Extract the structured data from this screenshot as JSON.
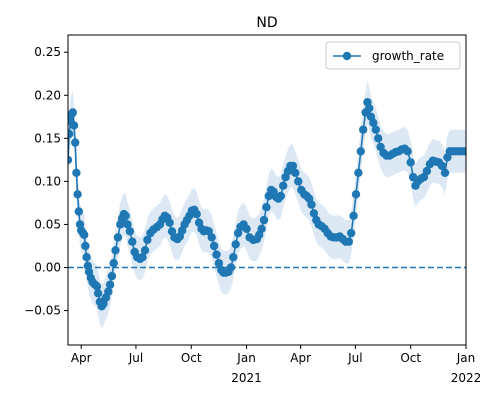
{
  "chart_data": {
    "type": "line",
    "title": "ND",
    "xlabel": "",
    "ylabel": "",
    "xlim": [
      "2020-03-10",
      "2022-01-01"
    ],
    "ylim": [
      -0.09,
      0.27
    ],
    "x_ticks": [
      {
        "date": "2020-04-01",
        "label": "Apr",
        "sub": ""
      },
      {
        "date": "2020-07-01",
        "label": "Jul",
        "sub": ""
      },
      {
        "date": "2020-10-01",
        "label": "Oct",
        "sub": ""
      },
      {
        "date": "2021-01-01",
        "label": "Jan",
        "sub": "2021"
      },
      {
        "date": "2021-04-01",
        "label": "Apr",
        "sub": ""
      },
      {
        "date": "2021-07-01",
        "label": "Jul",
        "sub": ""
      },
      {
        "date": "2021-10-01",
        "label": "Oct",
        "sub": ""
      },
      {
        "date": "2022-01-01",
        "label": "Jan",
        "sub": "2022"
      }
    ],
    "y_ticks": [
      {
        "value": -0.05,
        "label": "−0.05"
      },
      {
        "value": 0.0,
        "label": "0.00"
      },
      {
        "value": 0.05,
        "label": "0.05"
      },
      {
        "value": 0.1,
        "label": "0.10"
      },
      {
        "value": 0.15,
        "label": "0.15"
      },
      {
        "value": 0.2,
        "label": "0.20"
      },
      {
        "value": 0.25,
        "label": "0.25"
      }
    ],
    "reference_line": {
      "y": 0.0,
      "style": "dashed"
    },
    "legend": {
      "placement": "top-right"
    },
    "series": [
      {
        "name": "growth_rate",
        "color": "#1f77b4",
        "band_color": "#dce9f5",
        "band_half_width": 0.025,
        "points": [
          [
            "2020-03-10",
            0.125
          ],
          [
            "2020-03-12",
            0.155
          ],
          [
            "2020-03-14",
            0.17
          ],
          [
            "2020-03-16",
            0.178
          ],
          [
            "2020-03-18",
            0.18
          ],
          [
            "2020-03-20",
            0.165
          ],
          [
            "2020-03-22",
            0.145
          ],
          [
            "2020-03-24",
            0.11
          ],
          [
            "2020-03-26",
            0.085
          ],
          [
            "2020-03-28",
            0.065
          ],
          [
            "2020-03-30",
            0.05
          ],
          [
            "2020-04-01",
            0.043
          ],
          [
            "2020-04-04",
            0.04
          ],
          [
            "2020-04-06",
            0.038
          ],
          [
            "2020-04-08",
            0.025
          ],
          [
            "2020-04-10",
            0.012
          ],
          [
            "2020-04-12",
            0.002
          ],
          [
            "2020-04-14",
            -0.005
          ],
          [
            "2020-04-17",
            -0.012
          ],
          [
            "2020-04-20",
            -0.017
          ],
          [
            "2020-04-24",
            -0.02
          ],
          [
            "2020-04-27",
            -0.022
          ],
          [
            "2020-04-29",
            -0.03
          ],
          [
            "2020-05-02",
            -0.04
          ],
          [
            "2020-05-05",
            -0.045
          ],
          [
            "2020-05-08",
            -0.042
          ],
          [
            "2020-05-12",
            -0.035
          ],
          [
            "2020-05-16",
            -0.028
          ],
          [
            "2020-05-19",
            -0.02
          ],
          [
            "2020-05-22",
            -0.01
          ],
          [
            "2020-05-25",
            0.005
          ],
          [
            "2020-05-28",
            0.02
          ],
          [
            "2020-06-01",
            0.035
          ],
          [
            "2020-06-05",
            0.05
          ],
          [
            "2020-06-08",
            0.057
          ],
          [
            "2020-06-11",
            0.062
          ],
          [
            "2020-06-14",
            0.06
          ],
          [
            "2020-06-17",
            0.05
          ],
          [
            "2020-06-21",
            0.042
          ],
          [
            "2020-06-25",
            0.03
          ],
          [
            "2020-06-29",
            0.018
          ],
          [
            "2020-07-03",
            0.012
          ],
          [
            "2020-07-08",
            0.01
          ],
          [
            "2020-07-12",
            0.012
          ],
          [
            "2020-07-16",
            0.02
          ],
          [
            "2020-07-20",
            0.032
          ],
          [
            "2020-07-25",
            0.04
          ],
          [
            "2020-07-30",
            0.044
          ],
          [
            "2020-08-05",
            0.047
          ],
          [
            "2020-08-10",
            0.05
          ],
          [
            "2020-08-14",
            0.056
          ],
          [
            "2020-08-18",
            0.06
          ],
          [
            "2020-08-22",
            0.058
          ],
          [
            "2020-08-26",
            0.052
          ],
          [
            "2020-08-30",
            0.042
          ],
          [
            "2020-09-03",
            0.035
          ],
          [
            "2020-09-08",
            0.033
          ],
          [
            "2020-09-12",
            0.036
          ],
          [
            "2020-09-16",
            0.043
          ],
          [
            "2020-09-20",
            0.05
          ],
          [
            "2020-09-24",
            0.055
          ],
          [
            "2020-09-28",
            0.06
          ],
          [
            "2020-10-02",
            0.066
          ],
          [
            "2020-10-06",
            0.067
          ],
          [
            "2020-10-10",
            0.062
          ],
          [
            "2020-10-14",
            0.052
          ],
          [
            "2020-10-18",
            0.045
          ],
          [
            "2020-10-22",
            0.042
          ],
          [
            "2020-10-26",
            0.043
          ],
          [
            "2020-10-30",
            0.042
          ],
          [
            "2020-11-04",
            0.035
          ],
          [
            "2020-11-08",
            0.025
          ],
          [
            "2020-11-12",
            0.015
          ],
          [
            "2020-11-16",
            0.005
          ],
          [
            "2020-11-20",
            -0.003
          ],
          [
            "2020-11-24",
            -0.006
          ],
          [
            "2020-11-28",
            -0.006
          ],
          [
            "2020-12-02",
            -0.005
          ],
          [
            "2020-12-06",
            0.0
          ],
          [
            "2020-12-10",
            0.012
          ],
          [
            "2020-12-14",
            0.027
          ],
          [
            "2020-12-18",
            0.04
          ],
          [
            "2020-12-22",
            0.047
          ],
          [
            "2020-12-27",
            0.05
          ],
          [
            "2021-01-01",
            0.045
          ],
          [
            "2021-01-06",
            0.035
          ],
          [
            "2021-01-12",
            0.032
          ],
          [
            "2021-01-18",
            0.033
          ],
          [
            "2021-01-22",
            0.038
          ],
          [
            "2021-01-26",
            0.045
          ],
          [
            "2021-01-30",
            0.055
          ],
          [
            "2021-02-03",
            0.07
          ],
          [
            "2021-02-07",
            0.083
          ],
          [
            "2021-02-11",
            0.09
          ],
          [
            "2021-02-15",
            0.088
          ],
          [
            "2021-02-19",
            0.082
          ],
          [
            "2021-02-23",
            0.08
          ],
          [
            "2021-02-27",
            0.083
          ],
          [
            "2021-03-03",
            0.095
          ],
          [
            "2021-03-07",
            0.105
          ],
          [
            "2021-03-11",
            0.112
          ],
          [
            "2021-03-15",
            0.118
          ],
          [
            "2021-03-19",
            0.118
          ],
          [
            "2021-03-23",
            0.11
          ],
          [
            "2021-03-28",
            0.1
          ],
          [
            "2021-04-02",
            0.09
          ],
          [
            "2021-04-07",
            0.085
          ],
          [
            "2021-04-11",
            0.083
          ],
          [
            "2021-04-15",
            0.08
          ],
          [
            "2021-04-19",
            0.073
          ],
          [
            "2021-04-23",
            0.063
          ],
          [
            "2021-04-27",
            0.055
          ],
          [
            "2021-05-01",
            0.05
          ],
          [
            "2021-05-06",
            0.048
          ],
          [
            "2021-05-11",
            0.045
          ],
          [
            "2021-05-16",
            0.04
          ],
          [
            "2021-05-21",
            0.036
          ],
          [
            "2021-05-26",
            0.035
          ],
          [
            "2021-05-31",
            0.035
          ],
          [
            "2021-06-05",
            0.036
          ],
          [
            "2021-06-10",
            0.033
          ],
          [
            "2021-06-15",
            0.03
          ],
          [
            "2021-06-20",
            0.03
          ],
          [
            "2021-06-24",
            0.04
          ],
          [
            "2021-06-28",
            0.06
          ],
          [
            "2021-07-02",
            0.085
          ],
          [
            "2021-07-06",
            0.11
          ],
          [
            "2021-07-10",
            0.135
          ],
          [
            "2021-07-14",
            0.16
          ],
          [
            "2021-07-18",
            0.18
          ],
          [
            "2021-07-21",
            0.192
          ],
          [
            "2021-07-24",
            0.185
          ],
          [
            "2021-07-27",
            0.175
          ],
          [
            "2021-07-31",
            0.168
          ],
          [
            "2021-08-04",
            0.16
          ],
          [
            "2021-08-08",
            0.15
          ],
          [
            "2021-08-12",
            0.14
          ],
          [
            "2021-08-17",
            0.133
          ],
          [
            "2021-08-22",
            0.13
          ],
          [
            "2021-08-27",
            0.13
          ],
          [
            "2021-09-01",
            0.132
          ],
          [
            "2021-09-06",
            0.134
          ],
          [
            "2021-09-11",
            0.135
          ],
          [
            "2021-09-16",
            0.137
          ],
          [
            "2021-09-21",
            0.138
          ],
          [
            "2021-09-26",
            0.135
          ],
          [
            "2021-10-01",
            0.122
          ],
          [
            "2021-10-05",
            0.105
          ],
          [
            "2021-10-09",
            0.095
          ],
          [
            "2021-10-13",
            0.1
          ],
          [
            "2021-10-18",
            0.103
          ],
          [
            "2021-10-23",
            0.105
          ],
          [
            "2021-10-28",
            0.112
          ],
          [
            "2021-11-02",
            0.12
          ],
          [
            "2021-11-07",
            0.124
          ],
          [
            "2021-11-12",
            0.123
          ],
          [
            "2021-11-17",
            0.122
          ],
          [
            "2021-11-22",
            0.118
          ],
          [
            "2021-11-27",
            0.11
          ],
          [
            "2021-12-01",
            0.128
          ],
          [
            "2021-12-05",
            0.135
          ],
          [
            "2021-12-10",
            0.135
          ],
          [
            "2021-12-15",
            0.135
          ],
          [
            "2021-12-20",
            0.135
          ],
          [
            "2021-12-25",
            0.135
          ],
          [
            "2021-12-31",
            0.135
          ]
        ]
      }
    ]
  }
}
